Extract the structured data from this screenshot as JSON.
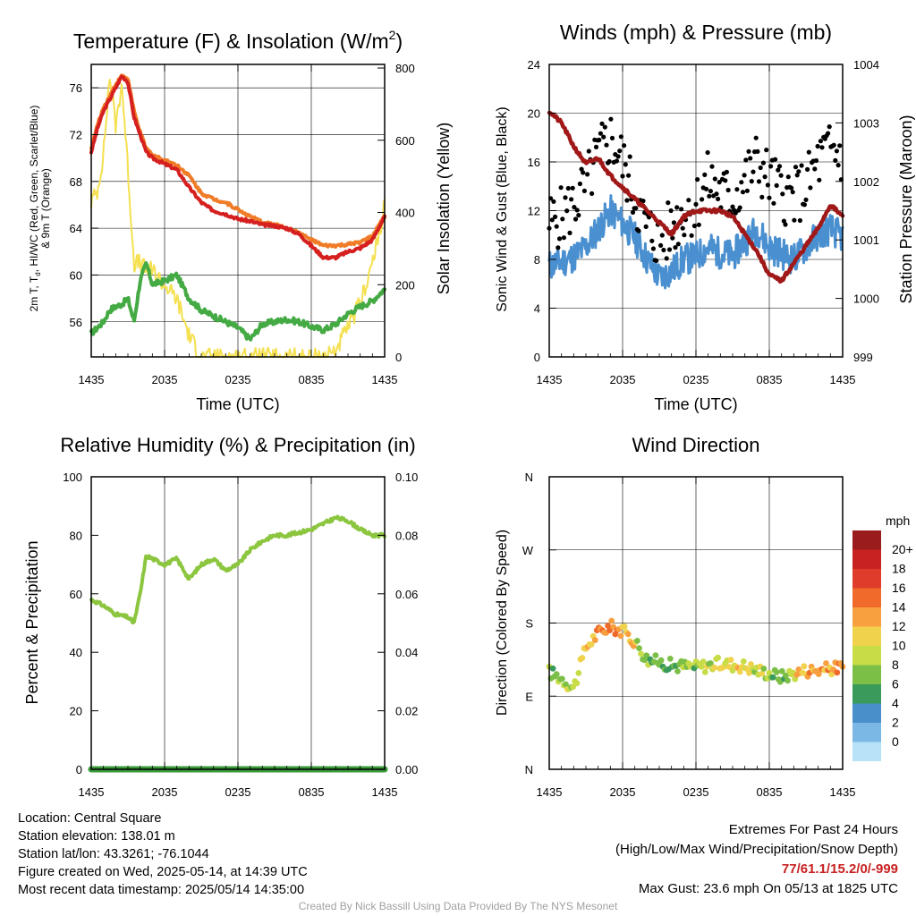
{
  "charts": {
    "temp": {
      "title": "Temperature (F) & Insolation (W/m",
      "title_sup": "2",
      "title_end": ")",
      "ylabel_line1_a": "2m T, T",
      "ylabel_line1_sub": "d",
      "ylabel_line1_b": ", HI/WC (Red, Green, Scarlet/Blue)",
      "ylabel_line2": "& 9m T (Orange)",
      "y2label": "Solar Insolation (Yellow)",
      "xlabel": "Time (UTC)"
    },
    "wind": {
      "title": "Winds (mph) & Pressure (mb)",
      "ylabel": "Sonic Wind & Gust (Blue, Black)",
      "y2label": "Station Pressure (Maroon)",
      "xlabel": "Time (UTC)"
    },
    "rh": {
      "title": "Relative Humidity (%) & Precipitation (in)",
      "ylabel": "Percent & Precipitation"
    },
    "dir": {
      "title": "Wind Direction",
      "ylabel": "Direction (Colored By Speed)",
      "legend_title": "mph"
    }
  },
  "x_ticks": [
    "1435",
    "2035",
    "0235",
    "0835",
    "1435"
  ],
  "chart_data": [
    {
      "type": "line",
      "title": "Temperature (F) & Insolation (W/m2)",
      "xlabel": "Time (UTC)",
      "x_tick_labels": [
        "1435",
        "2035",
        "0235",
        "0835",
        "1435"
      ],
      "ylim": [
        53,
        78
      ],
      "y_ticks": [
        56,
        60,
        64,
        68,
        72,
        76
      ],
      "y2lim": [
        0,
        810
      ],
      "y2_ticks": [
        0,
        200,
        400,
        600,
        800
      ],
      "x_hours": [
        0,
        0.5,
        1,
        1.5,
        2,
        2.5,
        3,
        3.5,
        4,
        4.5,
        5,
        6,
        7,
        8,
        9,
        10,
        11,
        12,
        13,
        14,
        15,
        16,
        17,
        18,
        19,
        20,
        21,
        22,
        23,
        23.5,
        24
      ],
      "series": [
        {
          "name": "2m T (Red)",
          "color": "#d62020",
          "values": [
            70.5,
            72.5,
            74,
            75,
            76,
            77,
            76.5,
            73.5,
            72,
            70.5,
            70,
            69.5,
            69,
            67.5,
            66.2,
            65.5,
            65.2,
            64.8,
            64.6,
            64.3,
            64.2,
            64,
            63.5,
            62.5,
            61.5,
            61.5,
            62,
            62.3,
            63,
            64,
            65
          ]
        },
        {
          "name": "9m T (Orange)",
          "color": "#f07c28",
          "values": [
            70.8,
            72.8,
            74.3,
            75.3,
            76.3,
            77,
            76.8,
            74,
            72.2,
            70.8,
            70.3,
            69.8,
            69.4,
            68.5,
            67,
            66.5,
            66.2,
            65.6,
            65,
            64.5,
            64.3,
            64,
            63.6,
            63,
            62.5,
            62.5,
            62.6,
            62.8,
            63.3,
            64.2,
            65
          ]
        },
        {
          "name": "Td (Green)",
          "color": "#44aa44",
          "values": [
            55,
            55.5,
            56,
            57,
            57.3,
            57.5,
            58,
            56,
            59.5,
            61,
            59.2,
            59.5,
            60,
            58,
            57,
            56.5,
            56,
            55.5,
            54.5,
            55.8,
            56,
            56.2,
            56,
            55.6,
            55.3,
            55.8,
            56.7,
            57.3,
            57.8,
            58.3,
            58.8
          ]
        },
        {
          "name": "Solar Insolation (Yellow)",
          "axis": "y2",
          "color": "#f4e050",
          "values": [
            430,
            460,
            560,
            780,
            640,
            760,
            520,
            260,
            260,
            240,
            240,
            200,
            160,
            60,
            0,
            0,
            0,
            0,
            0,
            0,
            0,
            0,
            0,
            0,
            0,
            20,
            80,
            150,
            260,
            330,
            420
          ]
        }
      ]
    },
    {
      "type": "line",
      "title": "Winds (mph) & Pressure (mb)",
      "xlabel": "Time (UTC)",
      "x_tick_labels": [
        "1435",
        "2035",
        "0235",
        "0835",
        "1435"
      ],
      "ylim": [
        0,
        24
      ],
      "y_ticks": [
        0,
        4,
        8,
        12,
        16,
        20,
        24
      ],
      "y2lim": [
        999,
        1004
      ],
      "y2_ticks": [
        999,
        1000,
        1001,
        1002,
        1003,
        1004
      ],
      "x_hours": [
        0,
        1,
        2,
        3,
        4,
        5,
        6,
        7,
        8,
        9,
        10,
        11,
        12,
        13,
        14,
        15,
        16,
        17,
        18,
        19,
        20,
        21,
        22,
        23,
        24
      ],
      "series": [
        {
          "name": "Sonic Wind (Blue)",
          "color": "#4a90d0",
          "values": [
            7.5,
            7.8,
            8.2,
            9,
            10.5,
            12,
            11,
            9.8,
            8,
            6.5,
            7,
            8,
            8.2,
            9,
            8.5,
            8.3,
            9.5,
            10.5,
            9,
            8.5,
            8,
            9,
            10,
            10.5,
            9.8
          ]
        },
        {
          "name": "Gust (Black)",
          "color": "#000000",
          "values": [
            11,
            11.5,
            12.5,
            14,
            16.5,
            18,
            16,
            13,
            10.5,
            9.5,
            10.5,
            12,
            12.5,
            14.5,
            13.5,
            13,
            14.5,
            16,
            14.5,
            13.5,
            13,
            14,
            16,
            17,
            16.5
          ]
        },
        {
          "name": "Station Pressure (Maroon)",
          "axis": "y2",
          "color": "#a01818",
          "values": [
            1003.2,
            1003,
            1002.6,
            1002.3,
            1002.4,
            1002.1,
            1001.9,
            1001.7,
            1001.5,
            1001.3,
            1001.1,
            1001.4,
            1001.5,
            1001.5,
            1001.5,
            1001.4,
            1001.1,
            1000.8,
            1000.4,
            1000.3,
            1000.6,
            1000.9,
            1001.2,
            1001.6,
            1001.4
          ]
        }
      ]
    },
    {
      "type": "line",
      "title": "Relative Humidity (%) & Precipitation (in)",
      "x_tick_labels": [
        "1435",
        "2035",
        "0235",
        "0835",
        "1435"
      ],
      "ylabel": "Percent & Precipitation",
      "ylim": [
        0,
        100
      ],
      "y_ticks": [
        0,
        20,
        40,
        60,
        80,
        100
      ],
      "y2lim": [
        0,
        0.1
      ],
      "y2_ticks": [
        "0.00",
        "0.02",
        "0.04",
        "0.06",
        "0.08",
        "0.10"
      ],
      "x_hours": [
        0,
        1,
        2,
        3,
        3.5,
        4,
        4.5,
        5,
        6,
        7,
        8,
        9,
        10,
        11,
        12,
        13,
        14,
        15,
        16,
        17,
        18,
        19,
        20,
        21,
        22,
        23,
        24
      ],
      "series": [
        {
          "name": "Relative Humidity",
          "color": "#8cc63f",
          "values": [
            58,
            56,
            53,
            52,
            50,
            60,
            73,
            72,
            70,
            72,
            65,
            70,
            72,
            68,
            70,
            75,
            78,
            80,
            80,
            81,
            82,
            84,
            86,
            85,
            82,
            80,
            80
          ]
        },
        {
          "name": "Precipitation",
          "axis": "y2",
          "color": "#3a9a3a",
          "values": [
            0,
            0,
            0,
            0,
            0,
            0,
            0,
            0,
            0,
            0,
            0,
            0,
            0,
            0,
            0,
            0,
            0,
            0,
            0,
            0,
            0,
            0,
            0,
            0,
            0,
            0,
            0
          ]
        }
      ]
    },
    {
      "type": "scatter",
      "title": "Wind Direction",
      "ylabel": "Direction (Colored By Speed)",
      "x_tick_labels": [
        "1435",
        "2035",
        "0235",
        "0835",
        "1435"
      ],
      "y_tick_labels": [
        "N",
        "E",
        "S",
        "W",
        "N"
      ],
      "ylim_degrees": [
        0,
        360
      ],
      "legend_title": "mph",
      "legend": [
        {
          "label": "20+",
          "color": "#9b1c1c"
        },
        {
          "label": "18",
          "color": "#c82222"
        },
        {
          "label": "16",
          "color": "#e03c2c"
        },
        {
          "label": "14",
          "color": "#f06a2c"
        },
        {
          "label": "12",
          "color": "#f8a040"
        },
        {
          "label": "10",
          "color": "#f0d24c"
        },
        {
          "label": "8",
          "color": "#c8dc48"
        },
        {
          "label": "6",
          "color": "#7cbf46"
        },
        {
          "label": "4",
          "color": "#3a9a5c"
        },
        {
          "label": "2",
          "color": "#4a90c8"
        },
        {
          "label": "0",
          "color": "#7cb8e6"
        },
        {
          "label": "",
          "color": "#b8e2f8"
        }
      ],
      "x_hours": [
        0,
        1,
        2,
        3,
        4,
        5,
        6,
        7,
        8,
        9,
        10,
        11,
        12,
        13,
        14,
        15,
        16,
        17,
        18,
        19,
        20,
        21,
        22,
        23,
        24
      ],
      "direction_deg": [
        120,
        112,
        100,
        150,
        168,
        176,
        170,
        158,
        135,
        132,
        128,
        127,
        126,
        128,
        130,
        129,
        127,
        122,
        118,
        114,
        118,
        122,
        122,
        124,
        126
      ],
      "speed_mph": [
        6,
        7,
        8,
        11,
        12,
        13,
        11,
        9,
        7,
        5,
        5,
        6,
        7,
        8,
        9,
        10,
        9,
        8,
        7,
        5,
        9,
        12,
        13,
        12,
        11
      ]
    }
  ],
  "info": {
    "location": "Location: Central Square",
    "elevation": "Station elevation: 138.01 m",
    "latlon": "Station lat/lon: 43.3261; -76.1044",
    "created": "Figure created on Wed, 2025-05-14, at 14:39 UTC",
    "recent": "Most recent data timestamp: 2025/05/14 14:35:00"
  },
  "extremes": {
    "title": "Extremes For Past 24 Hours",
    "subtitle": "(High/Low/Max Wind/Precipitation/Snow Depth)",
    "values": "77/61.1/15.2/0/-999",
    "values_color": "#c82020",
    "max_gust": "Max Gust: 23.6 mph On 05/13 at 1825 UTC"
  },
  "credit": "Created By Nick Bassill Using Data Provided By The NYS Mesonet"
}
